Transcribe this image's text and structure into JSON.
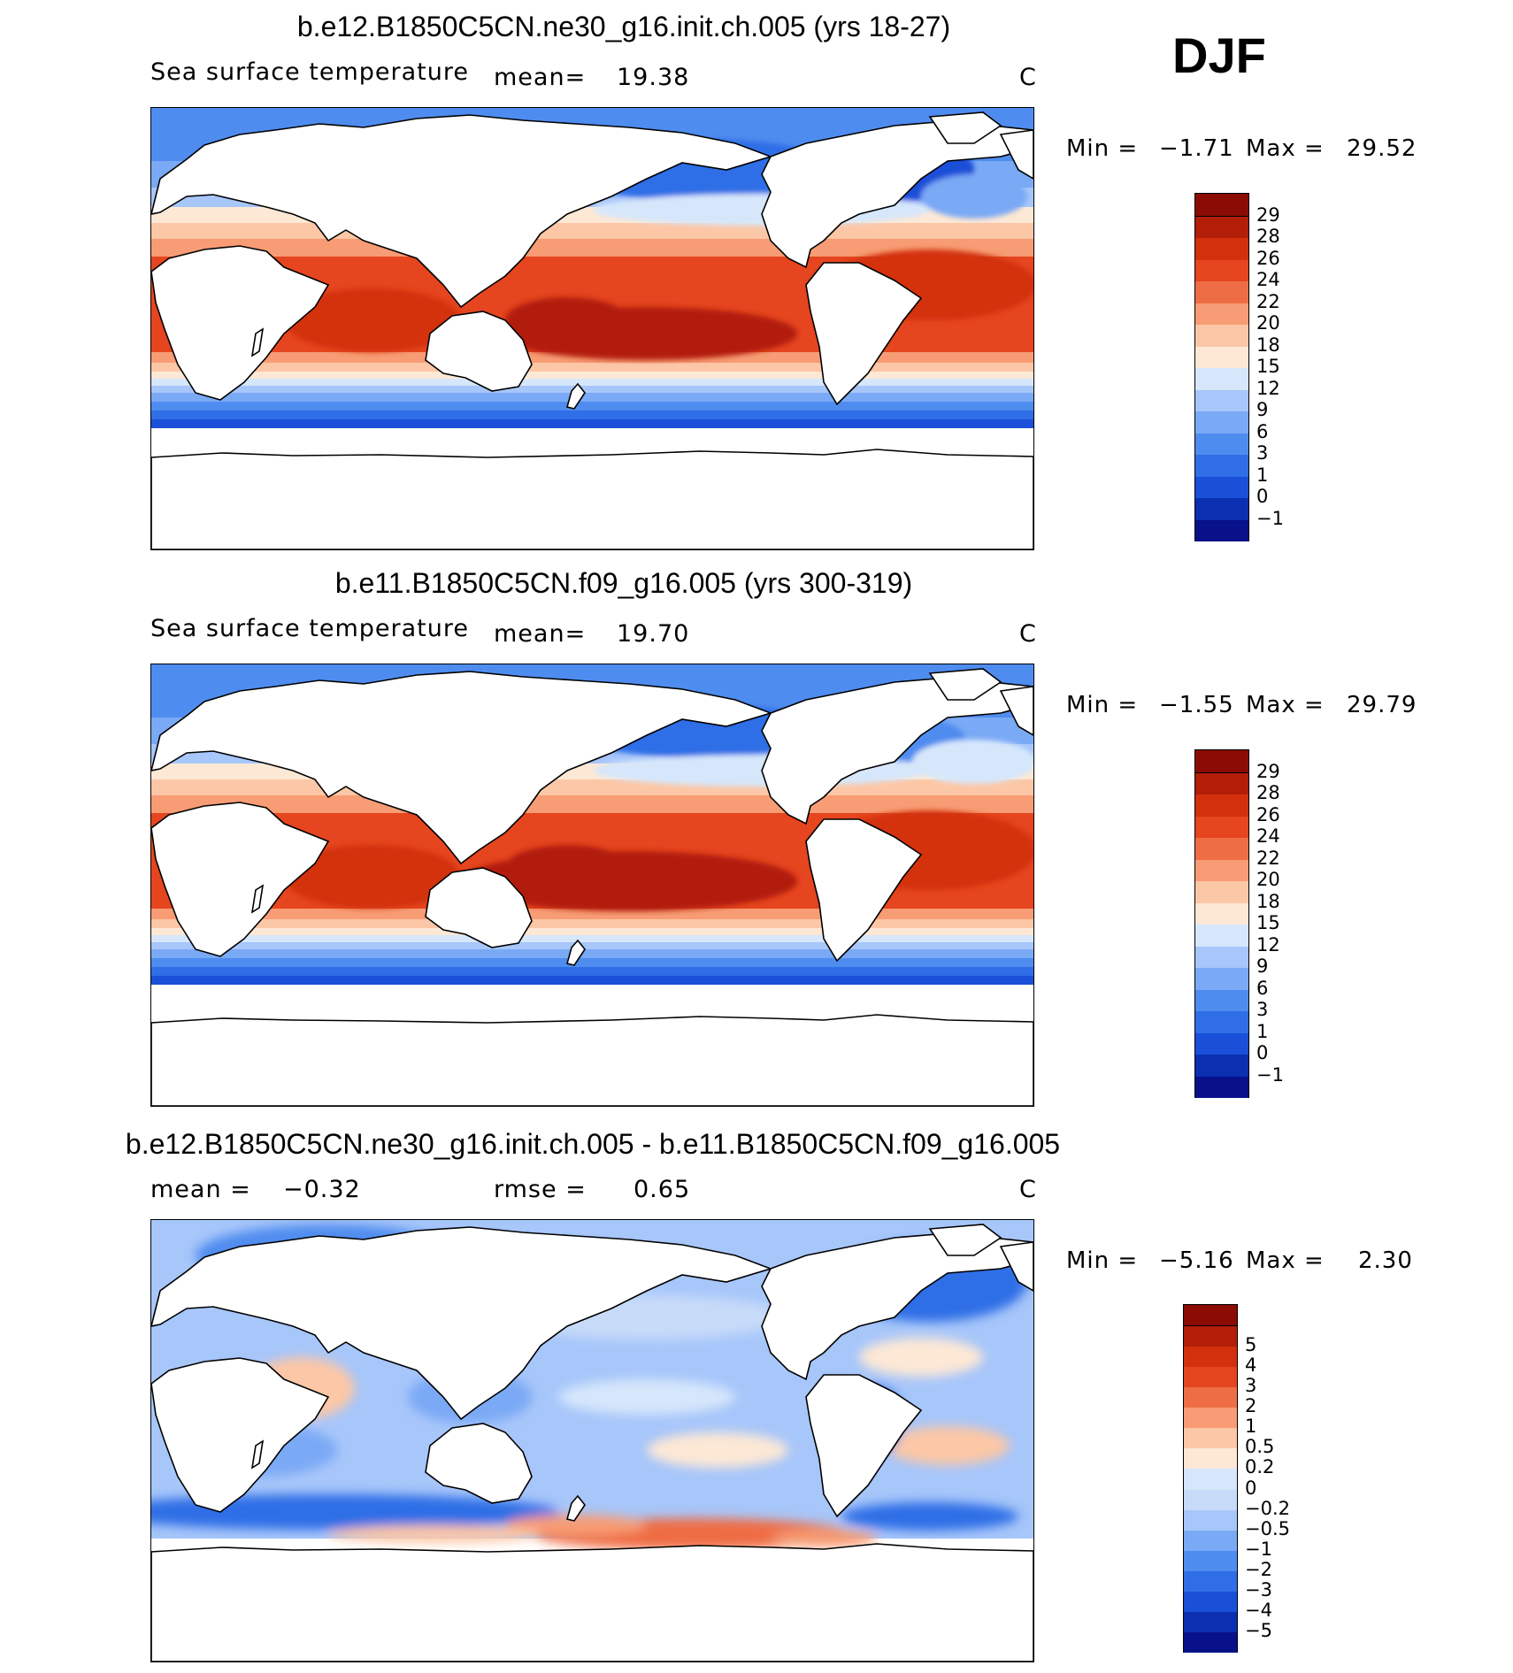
{
  "season": "DJF",
  "panels": [
    {
      "id": "p1",
      "title": "b.e12.B1850C5CN.ne30_g16.init.ch.005 (yrs 18-27)",
      "variable": "Sea surface temperature",
      "stat_label": "mean=",
      "stat_value": "19.38",
      "units": "C",
      "min_label": "Min =",
      "min_value": "−1.71",
      "max_label": "Max =",
      "max_value": "29.52",
      "colorbar": {
        "colors": [
          "#08118a",
          "#0a2fb0",
          "#1a4fd8",
          "#2f6ee6",
          "#4f8cef",
          "#7aa9f5",
          "#a7c6fa",
          "#d6e7fb",
          "#fde8d5",
          "#fcc7a6",
          "#f79c74",
          "#ef6d45",
          "#e5451f",
          "#d3300e",
          "#b21e08",
          "#8b0c05"
        ],
        "ticks": [
          "−1",
          "0",
          "1",
          "3",
          "6",
          "9",
          "12",
          "15",
          "18",
          "20",
          "22",
          "24",
          "26",
          "28",
          "29"
        ]
      }
    },
    {
      "id": "p2",
      "title": "b.e11.B1850C5CN.f09_g16.005 (yrs 300-319)",
      "variable": "Sea surface temperature",
      "stat_label": "mean=",
      "stat_value": "19.70",
      "units": "C",
      "min_label": "Min =",
      "min_value": "−1.55",
      "max_label": "Max =",
      "max_value": "29.79",
      "colorbar": {
        "colors": [
          "#08118a",
          "#0a2fb0",
          "#1a4fd8",
          "#2f6ee6",
          "#4f8cef",
          "#7aa9f5",
          "#a7c6fa",
          "#d6e7fb",
          "#fde8d5",
          "#fcc7a6",
          "#f79c74",
          "#ef6d45",
          "#e5451f",
          "#d3300e",
          "#b21e08",
          "#8b0c05"
        ],
        "ticks": [
          "−1",
          "0",
          "1",
          "3",
          "6",
          "9",
          "12",
          "15",
          "18",
          "20",
          "22",
          "24",
          "26",
          "28",
          "29"
        ]
      }
    },
    {
      "id": "p3",
      "title": "b.e12.B1850C5CN.ne30_g16.init.ch.005 - b.e11.B1850C5CN.f09_g16.005",
      "mean_label": "mean =",
      "mean_value": "−0.32",
      "rmse_label": "rmse =",
      "rmse_value": "0.65",
      "units": "C",
      "min_label": "Min =",
      "min_value": "−5.16",
      "max_label": "Max =",
      "max_value": "2.30",
      "colorbar": {
        "colors": [
          "#08118a",
          "#0a2fb0",
          "#1a4fd8",
          "#2f6ee6",
          "#4f8cef",
          "#7aa9f5",
          "#a7c6fa",
          "#c7dbf9",
          "#d6e7fb",
          "#fde8d5",
          "#fcc7a6",
          "#f79c74",
          "#ef6d45",
          "#e5451f",
          "#d3300e",
          "#b21e08",
          "#8b0c05"
        ],
        "ticks": [
          "−5",
          "−4",
          "−3",
          "−2",
          "−1",
          "−0.5",
          "−0.2",
          "0",
          "0.2",
          "0.5",
          "1",
          "2",
          "3",
          "4",
          "5"
        ]
      }
    }
  ]
}
